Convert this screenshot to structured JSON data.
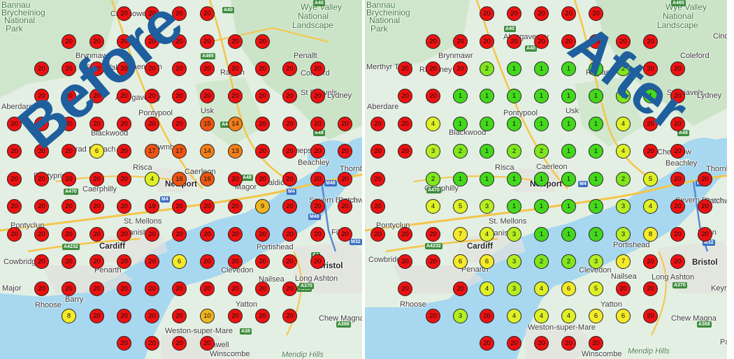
{
  "panels": [
    {
      "id": "before",
      "title": "Before",
      "places": [
        {
          "name": "Bannau",
          "kind": "region"
        },
        {
          "name": "Brycheiniog",
          "kind": "region"
        },
        {
          "name": "National",
          "kind": "region"
        },
        {
          "name": "Park",
          "kind": "region"
        },
        {
          "name": "Wye Valley",
          "kind": "region"
        },
        {
          "name": "National",
          "kind": "region"
        },
        {
          "name": "Landscape",
          "kind": "region"
        },
        {
          "name": "Crickhowell",
          "kind": "town"
        },
        {
          "name": "Brynmawr",
          "kind": "town"
        },
        {
          "name": "Ebbw Vale",
          "kind": "town"
        },
        {
          "name": "Blaenavon",
          "kind": "town"
        },
        {
          "name": "Abergavenny",
          "kind": "town"
        },
        {
          "name": "Aberdare",
          "kind": "town"
        },
        {
          "name": "Pontypool",
          "kind": "town"
        },
        {
          "name": "Usk",
          "kind": "town"
        },
        {
          "name": "Raglan",
          "kind": "town"
        },
        {
          "name": "Penallt",
          "kind": "town"
        },
        {
          "name": "Coleford",
          "kind": "town"
        },
        {
          "name": "St Briavels",
          "kind": "town"
        },
        {
          "name": "Lydney",
          "kind": "town"
        },
        {
          "name": "Blackwood",
          "kind": "town"
        },
        {
          "name": "Ystrad Mynach",
          "kind": "town"
        },
        {
          "name": "Cwmbran",
          "kind": "town"
        },
        {
          "name": "Caerleon",
          "kind": "town"
        },
        {
          "name": "Chepstow",
          "kind": "town"
        },
        {
          "name": "Beachley",
          "kind": "town"
        },
        {
          "name": "Thornbury",
          "kind": "town"
        },
        {
          "name": "Risca",
          "kind": "town"
        },
        {
          "name": "Pontypridd",
          "kind": "town"
        },
        {
          "name": "Caerphilly",
          "kind": "town"
        },
        {
          "name": "Newport",
          "kind": "major"
        },
        {
          "name": "Magor",
          "kind": "town"
        },
        {
          "name": "Caldicot",
          "kind": "town"
        },
        {
          "name": "Severn Beach",
          "kind": "town"
        },
        {
          "name": "Patchway",
          "kind": "town"
        },
        {
          "name": "Filton",
          "kind": "town"
        },
        {
          "name": "Pontyclun",
          "kind": "town"
        },
        {
          "name": "St. Mellons",
          "kind": "town"
        },
        {
          "name": "Llanishen",
          "kind": "town"
        },
        {
          "name": "Cardiff",
          "kind": "major"
        },
        {
          "name": "Portishead",
          "kind": "town"
        },
        {
          "name": "Cowbridge",
          "kind": "town"
        },
        {
          "name": "Penarth",
          "kind": "town"
        },
        {
          "name": "Clevedon",
          "kind": "town"
        },
        {
          "name": "Nailsea",
          "kind": "town"
        },
        {
          "name": "Long Ashton",
          "kind": "town"
        },
        {
          "name": "Bristol",
          "kind": "major"
        },
        {
          "name": "Major",
          "kind": "town"
        },
        {
          "name": "Barry",
          "kind": "town"
        },
        {
          "name": "Rhoose",
          "kind": "town"
        },
        {
          "name": "Yatton",
          "kind": "town"
        },
        {
          "name": "Chew Magna",
          "kind": "town"
        },
        {
          "name": "Weston-super-Mare",
          "kind": "town"
        },
        {
          "name": "Banwell",
          "kind": "town"
        },
        {
          "name": "Winscombe",
          "kind": "town"
        },
        {
          "name": "Mendip Hills",
          "kind": "area"
        }
      ],
      "roads": [
        "A40",
        "A40",
        "A465",
        "A449",
        "A48",
        "A48",
        "A470",
        "M4",
        "M4",
        "M48",
        "M49",
        "A4232",
        "A4",
        "A369",
        "A370",
        "A368",
        "A38",
        "M32"
      ],
      "markers": [
        {
          "v": "20"
        },
        {
          "v": "20"
        },
        {
          "v": "20"
        },
        {
          "v": "20"
        },
        {
          "v": "20"
        },
        {
          "v": "20"
        },
        {
          "v": "20"
        },
        {
          "v": "20"
        },
        {
          "v": "20"
        },
        {
          "v": "20"
        },
        {
          "v": "20"
        },
        {
          "v": "20"
        },
        {
          "v": "20"
        },
        {
          "v": "20"
        },
        {
          "v": "20"
        },
        {
          "v": "20"
        },
        {
          "v": "20"
        },
        {
          "v": "20"
        },
        {
          "v": "20"
        },
        {
          "v": "20"
        },
        {
          "v": "20"
        },
        {
          "v": "20"
        },
        {
          "v": "20"
        },
        {
          "v": "20"
        },
        {
          "v": "20"
        },
        {
          "v": "20"
        },
        {
          "v": "20"
        },
        {
          "v": "20"
        },
        {
          "v": "20"
        },
        {
          "v": "20"
        },
        {
          "v": "20"
        },
        {
          "v": "20"
        },
        {
          "v": "20"
        },
        {
          "v": "20"
        },
        {
          "v": "20"
        },
        {
          "v": "20"
        },
        {
          "v": "20"
        },
        {
          "v": "20"
        },
        {
          "v": "20"
        },
        {
          "v": "20"
        },
        {
          "v": "20"
        },
        {
          "v": "15"
        },
        {
          "v": "14"
        },
        {
          "v": "20"
        },
        {
          "v": "20"
        },
        {
          "v": "20"
        },
        {
          "v": "20"
        },
        {
          "v": "20"
        },
        {
          "v": "20"
        },
        {
          "v": "20"
        },
        {
          "v": "6"
        },
        {
          "v": "20"
        },
        {
          "v": "17"
        },
        {
          "v": "17"
        },
        {
          "v": "14"
        },
        {
          "v": "13"
        },
        {
          "v": "20"
        },
        {
          "v": "20"
        },
        {
          "v": "20"
        },
        {
          "v": "20"
        },
        {
          "v": "20"
        },
        {
          "v": "20"
        },
        {
          "v": "20"
        },
        {
          "v": "20"
        },
        {
          "v": "20"
        },
        {
          "v": "4"
        },
        {
          "v": "16"
        },
        {
          "v": "16"
        },
        {
          "v": "20"
        },
        {
          "v": "20"
        },
        {
          "v": "20"
        },
        {
          "v": "20"
        },
        {
          "v": "20"
        },
        {
          "v": "20"
        },
        {
          "v": "20"
        },
        {
          "v": "20"
        },
        {
          "v": "20"
        },
        {
          "v": "20"
        },
        {
          "v": "19"
        },
        {
          "v": "20"
        },
        {
          "v": "20"
        },
        {
          "v": "20"
        },
        {
          "v": "9"
        },
        {
          "v": "20"
        },
        {
          "v": "20"
        },
        {
          "v": "20"
        },
        {
          "v": "20"
        },
        {
          "v": "20"
        },
        {
          "v": "20"
        },
        {
          "v": "20"
        },
        {
          "v": "20"
        },
        {
          "v": "20"
        },
        {
          "v": "20"
        },
        {
          "v": "20"
        },
        {
          "v": "20"
        },
        {
          "v": "20"
        },
        {
          "v": "20"
        },
        {
          "v": "20"
        },
        {
          "v": "20"
        },
        {
          "v": "20"
        },
        {
          "v": "20"
        },
        {
          "v": "20"
        },
        {
          "v": "20"
        },
        {
          "v": "20"
        },
        {
          "v": "6"
        },
        {
          "v": "20"
        },
        {
          "v": "20"
        },
        {
          "v": "20"
        },
        {
          "v": "20"
        },
        {
          "v": "20"
        },
        {
          "v": "20"
        },
        {
          "v": "20"
        },
        {
          "v": "20"
        },
        {
          "v": "20"
        },
        {
          "v": "20"
        },
        {
          "v": "20"
        },
        {
          "v": "20"
        },
        {
          "v": "20"
        },
        {
          "v": "20"
        },
        {
          "v": "20"
        },
        {
          "v": "8"
        },
        {
          "v": "20"
        },
        {
          "v": "20"
        },
        {
          "v": "20"
        },
        {
          "v": "20"
        },
        {
          "v": "10"
        },
        {
          "v": "20"
        },
        {
          "v": "20"
        },
        {
          "v": "20"
        },
        {
          "v": "20"
        },
        {
          "v": "20"
        },
        {
          "v": "20"
        },
        {
          "v": "20"
        }
      ]
    },
    {
      "id": "after",
      "title": "After",
      "places": [
        {
          "name": "Bannau",
          "kind": "region"
        },
        {
          "name": "Brycheiniog",
          "kind": "region"
        },
        {
          "name": "National",
          "kind": "region"
        },
        {
          "name": "Park",
          "kind": "region"
        },
        {
          "name": "Wye Valley",
          "kind": "region"
        },
        {
          "name": "National",
          "kind": "region"
        },
        {
          "name": "Landscape",
          "kind": "region"
        },
        {
          "name": "Abergavenny",
          "kind": "town"
        },
        {
          "name": "Brynmawr",
          "kind": "town"
        },
        {
          "name": "Merthyr Tydfil",
          "kind": "town"
        },
        {
          "name": "Rhymney",
          "kind": "town"
        },
        {
          "name": "Aberdare",
          "kind": "town"
        },
        {
          "name": "Pontypool",
          "kind": "town"
        },
        {
          "name": "Usk",
          "kind": "town"
        },
        {
          "name": "Raglan",
          "kind": "town"
        },
        {
          "name": "Coleford",
          "kind": "town"
        },
        {
          "name": "Cinderford",
          "kind": "town"
        },
        {
          "name": "St Briavels",
          "kind": "town"
        },
        {
          "name": "Lydney",
          "kind": "town"
        },
        {
          "name": "Blackwood",
          "kind": "town"
        },
        {
          "name": "Chepstow",
          "kind": "town"
        },
        {
          "name": "Beachley",
          "kind": "town"
        },
        {
          "name": "Thornbury",
          "kind": "town"
        },
        {
          "name": "Risca",
          "kind": "town"
        },
        {
          "name": "Caerleon",
          "kind": "town"
        },
        {
          "name": "Caerphilly",
          "kind": "town"
        },
        {
          "name": "Newport",
          "kind": "major"
        },
        {
          "name": "Severn Beach",
          "kind": "town"
        },
        {
          "name": "Patchway",
          "kind": "town"
        },
        {
          "name": "Filton",
          "kind": "town"
        },
        {
          "name": "Pontyclun",
          "kind": "town"
        },
        {
          "name": "St. Mellons",
          "kind": "town"
        },
        {
          "name": "Llanishen",
          "kind": "town"
        },
        {
          "name": "Cardiff",
          "kind": "major"
        },
        {
          "name": "Portishead",
          "kind": "town"
        },
        {
          "name": "Cowbridge",
          "kind": "town"
        },
        {
          "name": "Penarth",
          "kind": "town"
        },
        {
          "name": "Clevedon",
          "kind": "town"
        },
        {
          "name": "Nailsea",
          "kind": "town"
        },
        {
          "name": "Long Ashton",
          "kind": "town"
        },
        {
          "name": "Bristol",
          "kind": "major"
        },
        {
          "name": "Keynsham",
          "kind": "town"
        },
        {
          "name": "Rhoose",
          "kind": "town"
        },
        {
          "name": "Yatton",
          "kind": "town"
        },
        {
          "name": "Chew Magna",
          "kind": "town"
        },
        {
          "name": "Weston-super-Mare",
          "kind": "town"
        },
        {
          "name": "Winscombe",
          "kind": "town"
        },
        {
          "name": "Mendip Hills",
          "kind": "area"
        },
        {
          "name": "Paulton",
          "kind": "town"
        }
      ],
      "roads": [
        "A465",
        "A40",
        "A40",
        "A48",
        "A470",
        "M4",
        "M4",
        "M48",
        "M32",
        "A4232",
        "A370",
        "A368"
      ],
      "markers": [
        {
          "v": "20"
        },
        {
          "v": "20"
        },
        {
          "v": "20"
        },
        {
          "v": "20"
        },
        {
          "v": "20"
        },
        {
          "v": "20"
        },
        {
          "v": "20"
        },
        {
          "v": "20"
        },
        {
          "v": "20"
        },
        {
          "v": "20"
        },
        {
          "v": "20"
        },
        {
          "v": "20"
        },
        {
          "v": "20"
        },
        {
          "v": "20"
        },
        {
          "v": "20"
        },
        {
          "v": "20"
        },
        {
          "v": "20"
        },
        {
          "v": "2"
        },
        {
          "v": "1"
        },
        {
          "v": "1"
        },
        {
          "v": "1"
        },
        {
          "v": "1"
        },
        {
          "v": "2"
        },
        {
          "v": "20"
        },
        {
          "v": "20"
        },
        {
          "v": "20"
        },
        {
          "v": "20"
        },
        {
          "v": "1"
        },
        {
          "v": "1"
        },
        {
          "v": "1"
        },
        {
          "v": "1"
        },
        {
          "v": "1"
        },
        {
          "v": "1"
        },
        {
          "v": "2"
        },
        {
          "v": "1"
        },
        {
          "v": "20"
        },
        {
          "v": "20"
        },
        {
          "v": "20"
        },
        {
          "v": "4"
        },
        {
          "v": "1"
        },
        {
          "v": "1"
        },
        {
          "v": "1"
        },
        {
          "v": "1"
        },
        {
          "v": "1"
        },
        {
          "v": "1"
        },
        {
          "v": "4"
        },
        {
          "v": "20"
        },
        {
          "v": "20"
        },
        {
          "v": "20"
        },
        {
          "v": "20"
        },
        {
          "v": "3"
        },
        {
          "v": "2"
        },
        {
          "v": "1"
        },
        {
          "v": "2"
        },
        {
          "v": "2"
        },
        {
          "v": "1"
        },
        {
          "v": "1"
        },
        {
          "v": "4"
        },
        {
          "v": "20"
        },
        {
          "v": "20"
        },
        {
          "v": "20"
        },
        {
          "v": "2"
        },
        {
          "v": "1"
        },
        {
          "v": "1"
        },
        {
          "v": "1"
        },
        {
          "v": "1"
        },
        {
          "v": "1"
        },
        {
          "v": "1"
        },
        {
          "v": "2"
        },
        {
          "v": "5"
        },
        {
          "v": "20"
        },
        {
          "v": "20"
        },
        {
          "v": "20"
        },
        {
          "v": "4"
        },
        {
          "v": "5"
        },
        {
          "v": "3"
        },
        {
          "v": "1"
        },
        {
          "v": "1"
        },
        {
          "v": "1"
        },
        {
          "v": "1"
        },
        {
          "v": "3"
        },
        {
          "v": "4"
        },
        {
          "v": "20"
        },
        {
          "v": "20"
        },
        {
          "v": "20"
        },
        {
          "v": "20"
        },
        {
          "v": "20"
        },
        {
          "v": "7"
        },
        {
          "v": "4"
        },
        {
          "v": "3"
        },
        {
          "v": "1"
        },
        {
          "v": "1"
        },
        {
          "v": "1"
        },
        {
          "v": "3"
        },
        {
          "v": "8"
        },
        {
          "v": "20"
        },
        {
          "v": "20"
        },
        {
          "v": "20"
        },
        {
          "v": "20"
        },
        {
          "v": "6"
        },
        {
          "v": "6"
        },
        {
          "v": "3"
        },
        {
          "v": "2"
        },
        {
          "v": "2"
        },
        {
          "v": "3"
        },
        {
          "v": "7"
        },
        {
          "v": "20"
        },
        {
          "v": "20"
        },
        {
          "v": "20"
        },
        {
          "v": "20"
        },
        {
          "v": "4"
        },
        {
          "v": "3"
        },
        {
          "v": "4"
        },
        {
          "v": "6"
        },
        {
          "v": "5"
        },
        {
          "v": "20"
        },
        {
          "v": "20"
        },
        {
          "v": "20"
        },
        {
          "v": "3"
        },
        {
          "v": "20"
        },
        {
          "v": "4"
        },
        {
          "v": "4"
        },
        {
          "v": "4"
        },
        {
          "v": "6"
        },
        {
          "v": "6"
        },
        {
          "v": "20"
        },
        {
          "v": "20"
        },
        {
          "v": "20"
        },
        {
          "v": "20"
        },
        {
          "v": "20"
        },
        {
          "v": "20"
        }
      ]
    }
  ]
}
